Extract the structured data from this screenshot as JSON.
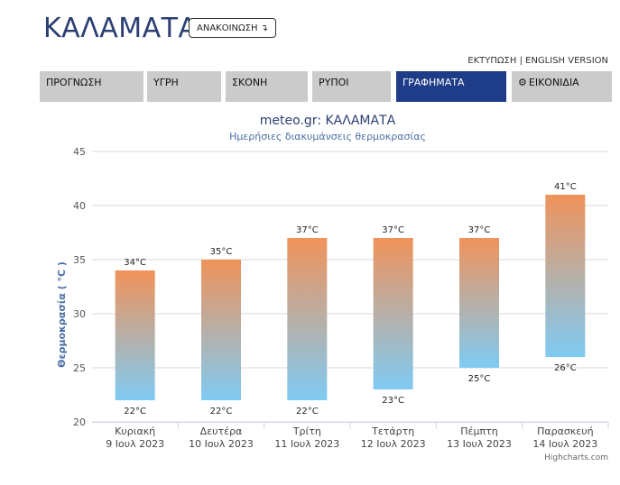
{
  "header": {
    "city": "ΚΑΛΑΜΑΤΑ",
    "announce_label": "ΑΝΑΚΟΙΝΩΣΗ",
    "announce_icon": "arrow-down-icon",
    "links": {
      "print": "ΕΚΤΥΠΩΣΗ",
      "separator": "|",
      "english": "ENGLISH VERSION"
    }
  },
  "tabs": [
    {
      "label": "ΠΡΟΓΝΩΣΗ"
    },
    {
      "label": "ΥΓΡΗ"
    },
    {
      "label": "ΣΚΟΝΗ"
    },
    {
      "label": "ΡΥΠΟΙ"
    },
    {
      "label": "ΓΡΑΦΗΜΑΤΑ",
      "active": true
    },
    {
      "label": "ΕΙΚΟΝΙΔΙΑ",
      "icon": "gear-icon"
    }
  ],
  "colors": {
    "accent": "#1f3c88",
    "bar_top": "#f0935a",
    "bar_bottom": "#7fcbf3"
  },
  "chart_data": {
    "type": "bar",
    "title": "meteo.gr: ΚΑΛΑΜΑΤΑ",
    "subtitle": "Ημερήσιες διακυμάνσεις θερμοκρασίας",
    "ylabel": "Θερμοκρασία ( °C )",
    "ylim": [
      20,
      45
    ],
    "yticks": [
      20,
      25,
      30,
      35,
      40,
      45
    ],
    "grid": true,
    "categories": [
      {
        "day": "Κυριακή",
        "date": "9 Ιουλ 2023"
      },
      {
        "day": "Δευτέρα",
        "date": "10 Ιουλ 2023"
      },
      {
        "day": "Τρίτη",
        "date": "11 Ιουλ 2023"
      },
      {
        "day": "Τετάρτη",
        "date": "12 Ιουλ 2023"
      },
      {
        "day": "Πέμπτη",
        "date": "13 Ιουλ 2023"
      },
      {
        "day": "Παρασκευή",
        "date": "14 Ιουλ 2023"
      }
    ],
    "min": [
      22,
      22,
      22,
      23,
      25,
      26
    ],
    "max": [
      34,
      35,
      37,
      37,
      37,
      41
    ],
    "unit": "°C",
    "credits": "Highcharts.com"
  }
}
